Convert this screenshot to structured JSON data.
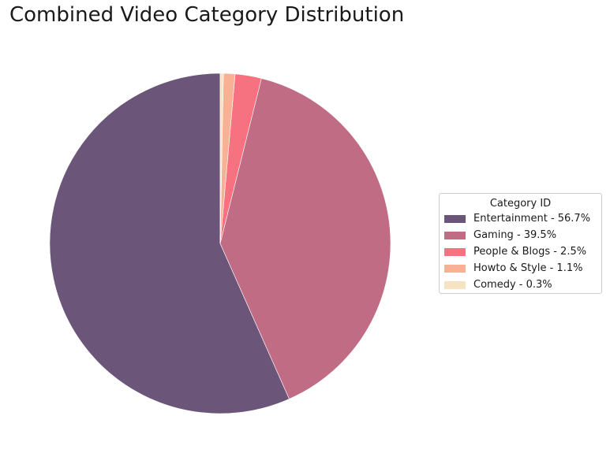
{
  "chart_data": {
    "type": "pie",
    "title": "Combined Video Category Distribution",
    "legend_title": "Category ID",
    "legend_position": "right",
    "start_angle_deg": 90,
    "direction": "counterclockwise",
    "slices": [
      {
        "label": "Entertainment",
        "value": 56.7,
        "legend": "Entertainment - 56.7%",
        "color": "#6b5679"
      },
      {
        "label": "Gaming",
        "value": 39.5,
        "legend": "Gaming - 39.5%",
        "color": "#c06c84"
      },
      {
        "label": "People & Blogs",
        "value": 2.5,
        "legend": "People & Blogs - 2.5%",
        "color": "#f67280"
      },
      {
        "label": "Howto & Style",
        "value": 1.1,
        "legend": "Howto & Style - 1.1%",
        "color": "#f8b195"
      },
      {
        "label": "Comedy",
        "value": 0.3,
        "legend": "Comedy - 0.3%",
        "color": "#f6e3c2"
      }
    ]
  }
}
